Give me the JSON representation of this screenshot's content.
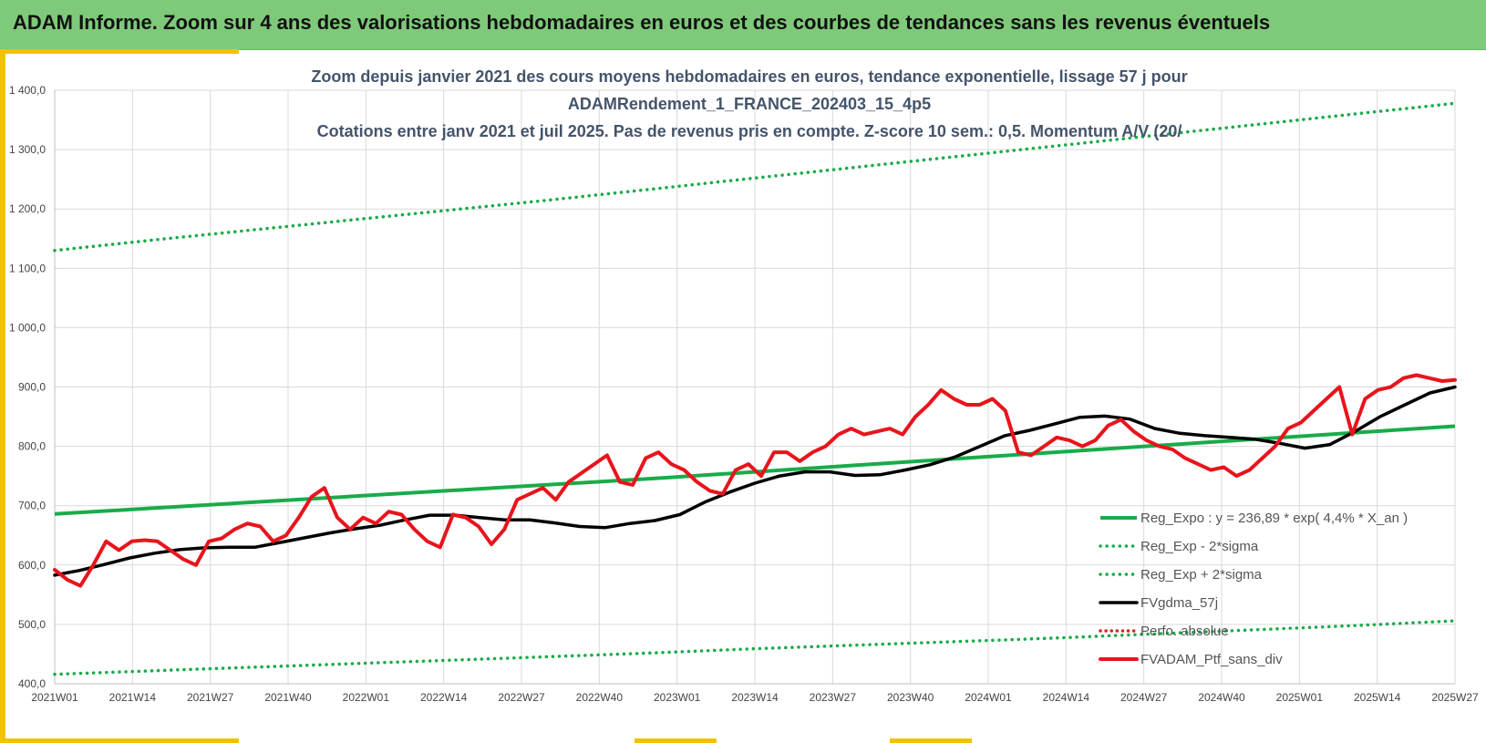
{
  "header": {
    "title": "ADAM Informe. Zoom sur 4 ans des valorisations hebdomadaires en euros et des courbes de tendances sans les revenus éventuels"
  },
  "chart_data": {
    "type": "line",
    "title_lines": [
      "Zoom depuis janvier 2021 des cours moyens hebdomadaires  en euros, tendance exponentielle, lissage 57 j pour",
      "ADAMRendement_1_FRANCE_202403_15_4p5",
      "Cotations  entre janv 2021 et juil 2025. Pas de revenus pris en compte. Z-score 10 sem.: 0,5. Momentum  A/V (20/"
    ],
    "xlabel": "",
    "ylabel": "",
    "ylim": [
      400,
      1400
    ],
    "yticks": [
      400,
      500,
      600,
      700,
      800,
      900,
      1000,
      1100,
      1200,
      1300,
      1400
    ],
    "ytick_labels": [
      "400,0",
      "500,0",
      "600,0",
      "700,0",
      "800,0",
      "900,0",
      "1 000,0",
      "1 100,0",
      "1 200,0",
      "1 300,0",
      "1 400,0"
    ],
    "x_tick_labels": [
      "2021W01",
      "2021W14",
      "2021W27",
      "2021W40",
      "2022W01",
      "2022W14",
      "2022W27",
      "2022W40",
      "2023W01",
      "2023W14",
      "2023W27",
      "2023W40",
      "2024W01",
      "2024W14",
      "2024W27",
      "2024W40",
      "2025W01",
      "2025W14",
      "2025W27"
    ],
    "grid": true,
    "legend_position": "bottom-right",
    "colors": {
      "reg_expo": "#1aab4a",
      "sigma": "#1aab4a",
      "fvgdma": "#000000",
      "perfo": "#d9241c",
      "fvadam": "#e8141c",
      "grid": "#d9d9d9"
    },
    "series": [
      {
        "name": "Reg_Expo : y = 236,89 * exp( 4,4% *  X_an )",
        "style": "solid",
        "values": [
          686,
          696,
          706,
          716,
          726,
          736,
          746,
          757,
          768,
          779,
          790,
          801,
          812,
          823,
          834
        ]
      },
      {
        "name": "Reg_Exp - 2*sigma",
        "style": "dotted",
        "values": [
          416,
          422,
          428,
          434,
          440,
          446,
          452,
          459,
          465,
          471,
          477,
          484,
          491,
          498,
          506
        ]
      },
      {
        "name": "Reg_Exp + 2*sigma",
        "style": "dotted",
        "values": [
          1130,
          1148,
          1165,
          1182,
          1199,
          1216,
          1234,
          1252,
          1270,
          1288,
          1306,
          1324,
          1342,
          1360,
          1378
        ]
      },
      {
        "name": "FVgdma_57j",
        "style": "solid-thick",
        "values": [
          583,
          591,
          601,
          612,
          620,
          626,
          629,
          630,
          630,
          638,
          646,
          654,
          661,
          667,
          676,
          684,
          684,
          680,
          676,
          676,
          671,
          665,
          663,
          670,
          675,
          685,
          706,
          723,
          738,
          750,
          757,
          757,
          751,
          752,
          760,
          769,
          782,
          800,
          818,
          827,
          838,
          849,
          851,
          846,
          830,
          822,
          818,
          815,
          812,
          805,
          797,
          803,
          825,
          850,
          870,
          890,
          900
        ]
      },
      {
        "name": "Perfo. absolue",
        "style": "dotted-red",
        "values": []
      },
      {
        "name": "FVADAM_Ptf_sans_div",
        "style": "solid-red",
        "values": [
          592,
          575,
          565,
          600,
          640,
          625,
          640,
          642,
          640,
          625,
          610,
          600,
          640,
          645,
          660,
          670,
          665,
          640,
          650,
          680,
          715,
          730,
          680,
          660,
          680,
          670,
          690,
          685,
          660,
          640,
          630,
          685,
          680,
          665,
          635,
          660,
          710,
          720,
          730,
          710,
          740,
          755,
          770,
          785,
          740,
          735,
          780,
          790,
          770,
          760,
          740,
          725,
          720,
          760,
          770,
          750,
          790,
          790,
          775,
          790,
          800,
          820,
          830,
          820,
          825,
          830,
          820,
          850,
          870,
          895,
          880,
          870,
          870,
          880,
          860,
          790,
          785,
          800,
          815,
          810,
          800,
          810,
          835,
          845,
          825,
          810,
          800,
          795,
          780,
          770,
          760,
          765,
          750,
          760,
          780,
          800,
          830,
          840,
          860,
          880,
          900,
          820,
          880,
          895,
          900,
          915,
          920,
          915,
          910,
          912
        ]
      }
    ]
  }
}
